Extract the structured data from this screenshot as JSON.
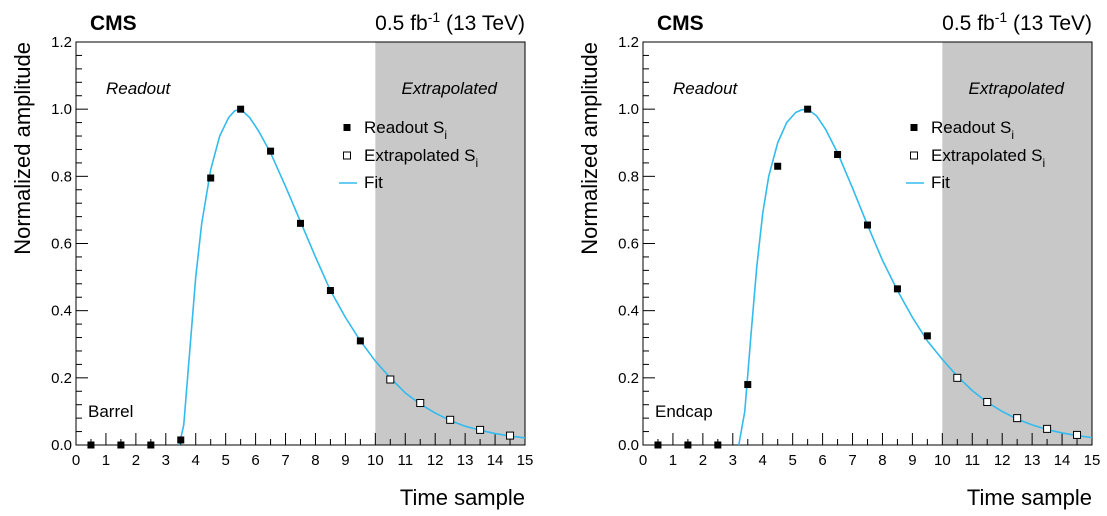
{
  "chart_data": [
    {
      "type": "scatter",
      "experiment": "CMS",
      "luminosity": "0.5 fb",
      "luminosity_sup": "-1",
      "energy": "(13 TeV)",
      "xlabel": "Time sample",
      "ylabel": "Normalized amplitude",
      "xlim": [
        0,
        15
      ],
      "ylim": [
        0,
        1.2
      ],
      "x_ticks": [
        "0",
        "1",
        "2",
        "3",
        "4",
        "5",
        "6",
        "7",
        "8",
        "9",
        "10",
        "11",
        "12",
        "13",
        "14",
        "15"
      ],
      "y_ticks": [
        "0.0",
        "0.2",
        "0.4",
        "0.6",
        "0.8",
        "1.0",
        "1.2"
      ],
      "region_left_label": "Readout",
      "region_right_label": "Extrapolated",
      "extrapolated_from_x": 10,
      "detector_label": "Barrel",
      "legend_placement": "top-right",
      "colors": {
        "fit": "#33bbee",
        "shade": "#c8c8c8",
        "marker": "#000000"
      },
      "series": [
        {
          "name": "Readout S",
          "name_sub": "i",
          "marker": "filled-square",
          "x": [
            0.5,
            1.5,
            2.5,
            3.5,
            4.5,
            5.5,
            6.5,
            7.5,
            8.5,
            9.5
          ],
          "y": [
            0.0,
            0.0,
            0.0,
            0.015,
            0.795,
            1.0,
            0.875,
            0.66,
            0.46,
            0.31
          ]
        },
        {
          "name": "Extrapolated S",
          "name_sub": "i",
          "marker": "open-square",
          "x": [
            10.5,
            11.5,
            12.5,
            13.5,
            14.5
          ],
          "y": [
            0.195,
            0.125,
            0.075,
            0.045,
            0.028
          ]
        },
        {
          "name": "Fit",
          "marker": "line",
          "x": [
            3.45,
            3.6,
            3.8,
            4.0,
            4.2,
            4.5,
            4.8,
            5.1,
            5.3,
            5.5,
            5.8,
            6.1,
            6.5,
            7.0,
            7.5,
            8.0,
            8.5,
            9.0,
            9.5,
            10.0,
            10.5,
            11.0,
            11.5,
            12.0,
            12.5,
            13.0,
            13.5,
            14.0,
            14.5,
            15.0
          ],
          "y": [
            0.0,
            0.06,
            0.28,
            0.5,
            0.66,
            0.82,
            0.92,
            0.975,
            0.995,
            1.0,
            0.975,
            0.935,
            0.87,
            0.77,
            0.665,
            0.56,
            0.46,
            0.38,
            0.31,
            0.25,
            0.2,
            0.155,
            0.122,
            0.095,
            0.073,
            0.056,
            0.044,
            0.034,
            0.027,
            0.021
          ]
        }
      ]
    },
    {
      "type": "scatter",
      "experiment": "CMS",
      "luminosity": "0.5 fb",
      "luminosity_sup": "-1",
      "energy": "(13 TeV)",
      "xlabel": "Time sample",
      "ylabel": "Normalized amplitude",
      "xlim": [
        0,
        15
      ],
      "ylim": [
        0,
        1.2
      ],
      "x_ticks": [
        "0",
        "1",
        "2",
        "3",
        "4",
        "5",
        "6",
        "7",
        "8",
        "9",
        "10",
        "11",
        "12",
        "13",
        "14",
        "15"
      ],
      "y_ticks": [
        "0.0",
        "0.2",
        "0.4",
        "0.6",
        "0.8",
        "1.0",
        "1.2"
      ],
      "region_left_label": "Readout",
      "region_right_label": "Extrapolated",
      "extrapolated_from_x": 10,
      "detector_label": "Endcap",
      "legend_placement": "top-right",
      "colors": {
        "fit": "#33bbee",
        "shade": "#c8c8c8",
        "marker": "#000000"
      },
      "series": [
        {
          "name": "Readout S",
          "name_sub": "i",
          "marker": "filled-square",
          "x": [
            0.5,
            1.5,
            2.5,
            3.5,
            4.5,
            5.5,
            6.5,
            7.5,
            8.5,
            9.5
          ],
          "y": [
            0.0,
            0.0,
            0.0,
            0.18,
            0.83,
            1.0,
            0.865,
            0.655,
            0.465,
            0.325
          ]
        },
        {
          "name": "Extrapolated S",
          "name_sub": "i",
          "marker": "open-square",
          "x": [
            10.5,
            11.5,
            12.5,
            13.5,
            14.5
          ],
          "y": [
            0.2,
            0.128,
            0.08,
            0.048,
            0.03
          ]
        },
        {
          "name": "Fit",
          "marker": "line",
          "x": [
            3.2,
            3.4,
            3.6,
            3.8,
            4.0,
            4.2,
            4.5,
            4.8,
            5.1,
            5.3,
            5.5,
            5.8,
            6.1,
            6.5,
            7.0,
            7.5,
            8.0,
            8.5,
            9.0,
            9.5,
            10.0,
            10.5,
            11.0,
            11.5,
            12.0,
            12.5,
            13.0,
            13.5,
            14.0,
            14.5,
            15.0
          ],
          "y": [
            0.0,
            0.1,
            0.32,
            0.53,
            0.69,
            0.8,
            0.9,
            0.96,
            0.99,
            0.998,
            1.0,
            0.98,
            0.94,
            0.87,
            0.765,
            0.655,
            0.55,
            0.46,
            0.38,
            0.31,
            0.255,
            0.205,
            0.162,
            0.127,
            0.1,
            0.077,
            0.06,
            0.046,
            0.036,
            0.028,
            0.022
          ]
        }
      ]
    }
  ]
}
